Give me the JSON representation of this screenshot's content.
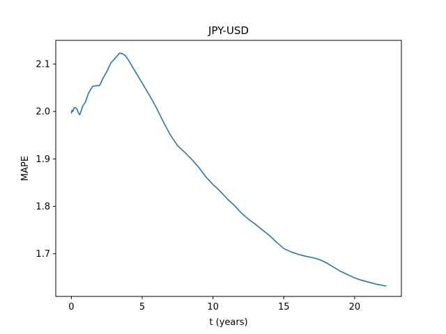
{
  "chart_data": {
    "type": "line",
    "title": "JPY-USD",
    "xlabel": "t (years)",
    "ylabel": "MAPE",
    "xlim": [
      -1.1,
      23.3
    ],
    "ylim": [
      1.61,
      2.15
    ],
    "xticks": [
      0,
      5,
      10,
      15,
      20
    ],
    "xtick_labels": [
      "0",
      "5",
      "10",
      "15",
      "20"
    ],
    "yticks": [
      1.7,
      1.8,
      1.9,
      2.0,
      2.1
    ],
    "ytick_labels": [
      "1.7",
      "1.8",
      "1.9",
      "2.0",
      "2.1"
    ],
    "grid": false,
    "legend": "none",
    "series": [
      {
        "color": "#1f77b4",
        "x": [
          0.0,
          0.05,
          0.1,
          0.2,
          0.3,
          0.4,
          0.5,
          0.6,
          0.7,
          0.8,
          1.0,
          1.2,
          1.5,
          1.7,
          2.0,
          2.2,
          2.5,
          2.8,
          3.0,
          3.2,
          3.4,
          3.6,
          3.8,
          4.0,
          4.5,
          5.0,
          5.5,
          6.0,
          6.5,
          7.0,
          7.5,
          8.0,
          8.5,
          9.0,
          9.5,
          10.0,
          10.5,
          11.0,
          11.5,
          12.0,
          12.5,
          13.0,
          13.5,
          14.0,
          14.5,
          15.0,
          15.5,
          16.0,
          16.5,
          17.0,
          17.5,
          18.0,
          18.5,
          19.0,
          19.5,
          20.0,
          20.5,
          21.0,
          21.5,
          22.0,
          22.2
        ],
        "y": [
          1.997,
          2.003,
          2.0,
          2.008,
          2.008,
          2.005,
          1.997,
          1.993,
          2.002,
          2.011,
          2.02,
          2.038,
          2.053,
          2.054,
          2.055,
          2.068,
          2.084,
          2.103,
          2.109,
          2.116,
          2.123,
          2.122,
          2.118,
          2.11,
          2.085,
          2.06,
          2.035,
          2.008,
          1.978,
          1.95,
          1.928,
          1.914,
          1.899,
          1.882,
          1.862,
          1.846,
          1.832,
          1.816,
          1.802,
          1.786,
          1.773,
          1.762,
          1.75,
          1.738,
          1.724,
          1.711,
          1.704,
          1.699,
          1.695,
          1.692,
          1.688,
          1.681,
          1.672,
          1.663,
          1.656,
          1.649,
          1.644,
          1.64,
          1.636,
          1.633,
          1.632
        ]
      }
    ]
  }
}
